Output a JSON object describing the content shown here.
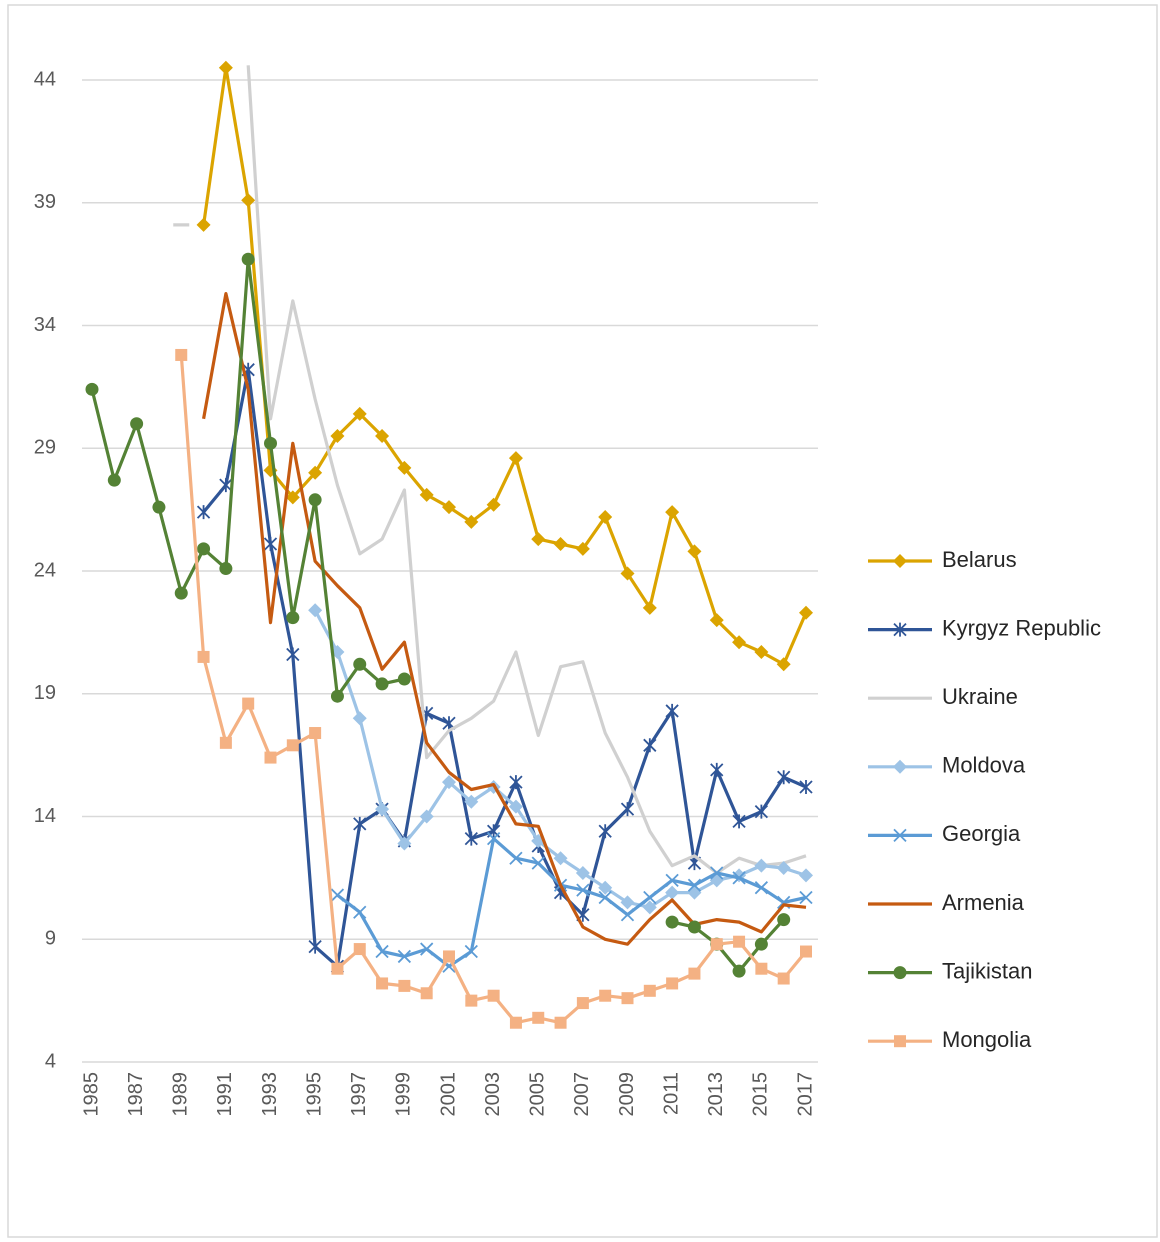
{
  "chart_data": {
    "type": "line",
    "categories": [
      "1985",
      null,
      "1987",
      null,
      "1989",
      null,
      "1991",
      null,
      "1993",
      null,
      "1995",
      null,
      "1997",
      null,
      "1999",
      null,
      "2001",
      null,
      "2003",
      null,
      "2005",
      null,
      "2007",
      null,
      "2009",
      null,
      "2011",
      null,
      "2013",
      null,
      "2015",
      null,
      "2017"
    ],
    "ylim": [
      4,
      44
    ],
    "yticks": [
      4,
      9,
      14,
      19,
      24,
      29,
      34,
      39,
      44
    ],
    "grid": true,
    "legend": "right",
    "series": [
      {
        "name": "Belarus",
        "color": "#dba400",
        "marker": "diamond",
        "values": [
          null,
          null,
          null,
          null,
          null,
          38.1,
          44.5,
          39.1,
          28.1,
          27.0,
          28.0,
          29.5,
          30.4,
          29.5,
          28.2,
          27.1,
          26.6,
          26.0,
          26.7,
          28.6,
          25.3,
          25.1,
          24.9,
          26.2,
          23.9,
          22.5,
          26.4,
          24.8,
          22.0,
          21.1,
          20.7,
          20.2,
          22.3
        ]
      },
      {
        "name": "Kyrgyz Republic",
        "color": "#2f5597",
        "marker": "star",
        "values": [
          null,
          null,
          null,
          null,
          null,
          26.4,
          27.5,
          32.2,
          25.1,
          20.6,
          8.7,
          7.9,
          13.7,
          14.3,
          13.0,
          18.2,
          17.8,
          13.1,
          13.4,
          15.4,
          12.8,
          10.9,
          10.0,
          13.4,
          14.3,
          16.9,
          18.3,
          12.1,
          15.9,
          13.8,
          14.2,
          15.6,
          15.2
        ]
      },
      {
        "name": "Ukraine",
        "color": "#d0d0d0",
        "marker": "none",
        "values": [
          null,
          null,
          null,
          null,
          38.1,
          null,
          null,
          44.6,
          30.2,
          35.0,
          31.0,
          27.5,
          24.7,
          25.3,
          27.3,
          16.4,
          17.5,
          18.0,
          18.7,
          20.7,
          17.3,
          20.1,
          20.3,
          17.4,
          15.6,
          13.4,
          12.0,
          12.4,
          11.7,
          12.3,
          12.0,
          12.1,
          12.4
        ]
      },
      {
        "name": "Moldova",
        "color": "#9dc3e6",
        "marker": "diamond",
        "values": [
          null,
          null,
          null,
          null,
          null,
          null,
          null,
          null,
          null,
          null,
          22.4,
          20.7,
          18.0,
          14.3,
          12.9,
          14.0,
          15.4,
          14.6,
          15.2,
          14.4,
          13.0,
          12.3,
          11.7,
          11.1,
          10.5,
          10.3,
          10.9,
          10.9,
          11.4,
          11.6,
          12.0,
          11.9,
          11.6
        ]
      },
      {
        "name": "Georgia",
        "color": "#5b9bd5",
        "marker": "x",
        "values": [
          null,
          null,
          null,
          null,
          null,
          null,
          null,
          null,
          null,
          null,
          null,
          10.8,
          10.1,
          8.5,
          8.3,
          8.6,
          7.9,
          8.5,
          13.1,
          12.3,
          12.1,
          11.2,
          11.0,
          10.7,
          10.0,
          10.7,
          11.4,
          11.2,
          11.7,
          11.5,
          11.1,
          10.5,
          10.7
        ]
      },
      {
        "name": "Armenia",
        "color": "#c55a11",
        "marker": "none",
        "values": [
          null,
          null,
          null,
          null,
          null,
          30.2,
          35.3,
          31.4,
          21.9,
          29.2,
          24.4,
          23.4,
          22.5,
          20.0,
          21.1,
          17.0,
          15.8,
          15.1,
          15.3,
          13.7,
          13.6,
          11.2,
          9.5,
          9.0,
          8.8,
          9.8,
          10.6,
          9.6,
          9.8,
          9.7,
          9.3,
          10.4,
          10.3
        ]
      },
      {
        "name": "Tajikistan",
        "color": "#548235",
        "marker": "circle",
        "values": [
          31.4,
          27.7,
          30.0,
          26.6,
          23.1,
          24.9,
          24.1,
          36.7,
          29.2,
          22.1,
          26.9,
          18.9,
          20.2,
          19.4,
          19.6,
          null,
          null,
          null,
          null,
          null,
          null,
          null,
          null,
          null,
          null,
          null,
          9.7,
          9.5,
          8.8,
          7.7,
          8.8,
          9.8,
          null
        ]
      },
      {
        "name": "Mongolia",
        "color": "#f4b183",
        "marker": "square",
        "values": [
          null,
          null,
          null,
          null,
          32.8,
          20.5,
          17.0,
          18.6,
          16.4,
          16.9,
          17.4,
          7.8,
          8.6,
          7.2,
          7.1,
          6.8,
          8.3,
          6.5,
          6.7,
          5.6,
          5.8,
          5.6,
          6.4,
          6.7,
          6.6,
          6.9,
          7.2,
          7.6,
          8.8,
          8.9,
          7.8,
          7.4,
          8.5
        ]
      }
    ]
  }
}
